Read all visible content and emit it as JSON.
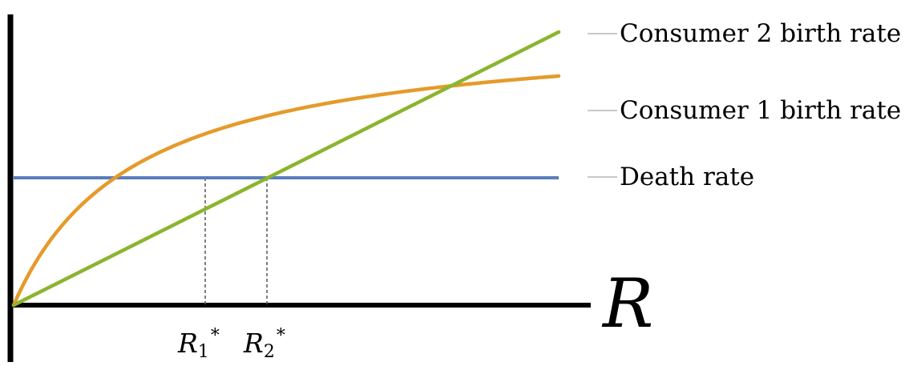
{
  "chart_data": {
    "type": "line",
    "xlabel": "R",
    "x_ticks": [
      {
        "id": "r1",
        "base": "R",
        "sub": "1",
        "sup": "*"
      },
      {
        "id": "r2",
        "base": "R",
        "sub": "2",
        "sup": "*"
      }
    ],
    "series": [
      {
        "name": "Consumer 2 birth rate",
        "color": "#8ab52e"
      },
      {
        "name": "Consumer 1 birth rate",
        "color": "#e59a2a"
      },
      {
        "name": "Death rate",
        "color": "#5b7dbf"
      }
    ],
    "legend_line_color": "#c8c8c8"
  }
}
